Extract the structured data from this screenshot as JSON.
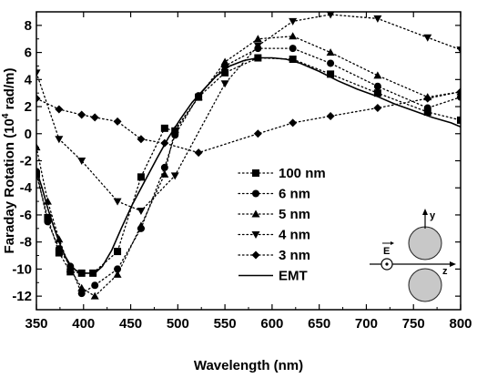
{
  "chart_data": {
    "type": "line",
    "xlabel": "Wavelength (nm)",
    "ylabel_main": "Faraday Rotation (10",
    "ylabel_exp": "4",
    "ylabel_tail": " rad/m)",
    "xlim": [
      350,
      800
    ],
    "ylim": [
      -13,
      9
    ],
    "xticks": [
      350,
      400,
      450,
      500,
      550,
      600,
      650,
      700,
      750,
      800
    ],
    "yticks": [
      -12,
      -10,
      -8,
      -6,
      -4,
      -2,
      0,
      2,
      4,
      6,
      8
    ],
    "grid": false,
    "legend_position": "center-left",
    "series": [
      {
        "name": "100 nm",
        "marker": "square",
        "line": "dotted",
        "x": [
          350,
          362,
          374,
          386,
          398,
          410,
          436,
          461,
          486,
          497,
          522,
          550,
          585,
          622,
          662,
          712,
          765,
          800
        ],
        "y": [
          -3.0,
          -6.2,
          -8.8,
          -10.2,
          -10.3,
          -10.3,
          -8.7,
          -3.2,
          0.4,
          0.2,
          2.7,
          4.5,
          5.6,
          5.5,
          4.4,
          3.0,
          1.6,
          1.0
        ]
      },
      {
        "name": "6 nm",
        "marker": "circle",
        "line": "dotted",
        "x": [
          350,
          362,
          374,
          386,
          398,
          412,
          436,
          461,
          486,
          497,
          522,
          550,
          585,
          622,
          662,
          712,
          765,
          800
        ],
        "y": [
          -2.8,
          -6.5,
          -8.5,
          -9.8,
          -11.8,
          -11.2,
          -10.0,
          -7.0,
          -2.5,
          -0.1,
          2.8,
          5.0,
          6.3,
          6.3,
          5.2,
          3.5,
          1.9,
          2.7
        ]
      },
      {
        "name": "5 nm",
        "marker": "triangle-up",
        "line": "dotted",
        "x": [
          350,
          362,
          374,
          386,
          398,
          412,
          436,
          461,
          486,
          497,
          522,
          550,
          585,
          622,
          662,
          712,
          765,
          800
        ],
        "y": [
          -1.0,
          -5.0,
          -7.8,
          -10.0,
          -11.4,
          -12.0,
          -10.4,
          -6.8,
          -3.0,
          0.3,
          2.7,
          5.3,
          7.0,
          7.2,
          6.0,
          4.3,
          2.7,
          3.1
        ]
      },
      {
        "name": "4 nm",
        "marker": "triangle-down",
        "line": "dotted",
        "x": [
          350,
          374,
          398,
          436,
          461,
          497,
          550,
          585,
          622,
          662,
          712,
          765,
          800
        ],
        "y": [
          4.5,
          -0.4,
          -2.0,
          -5.0,
          -5.7,
          -3.1,
          3.7,
          6.5,
          8.3,
          8.8,
          8.5,
          7.1,
          6.2
        ]
      },
      {
        "name": "3 nm",
        "marker": "diamond",
        "line": "dotted",
        "x": [
          350,
          374,
          398,
          412,
          436,
          461,
          486,
          522,
          585,
          622,
          662,
          712,
          765,
          800
        ],
        "y": [
          2.6,
          1.8,
          1.4,
          1.2,
          0.9,
          -0.4,
          -0.7,
          -1.4,
          0.0,
          0.8,
          1.3,
          1.9,
          2.6,
          3.1
        ]
      },
      {
        "name": "EMT",
        "marker": "none",
        "line": "solid",
        "x": [
          350,
          356,
          362,
          368,
          374,
          380,
          386,
          392,
          398,
          405,
          412,
          420,
          430,
          440,
          452,
          465,
          478,
          490,
          503,
          515,
          528,
          540,
          555,
          570,
          585,
          600,
          615,
          630,
          650,
          670,
          690,
          710,
          730,
          750,
          770,
          790,
          800
        ],
        "y": [
          -2.7,
          -4.0,
          -5.5,
          -6.8,
          -8.0,
          -9.0,
          -9.7,
          -10.1,
          -10.3,
          -10.3,
          -10.3,
          -9.8,
          -8.6,
          -7.0,
          -5.2,
          -3.5,
          -1.8,
          -0.3,
          1.1,
          2.3,
          3.3,
          4.2,
          5.0,
          5.4,
          5.6,
          5.6,
          5.5,
          5.2,
          4.6,
          3.9,
          3.3,
          2.8,
          2.2,
          1.7,
          1.2,
          0.8,
          0.5
        ]
      }
    ]
  },
  "inset": {
    "e_label": "E",
    "y_label": "y",
    "z_label": "z",
    "particle_color": "#c8c8c8"
  }
}
